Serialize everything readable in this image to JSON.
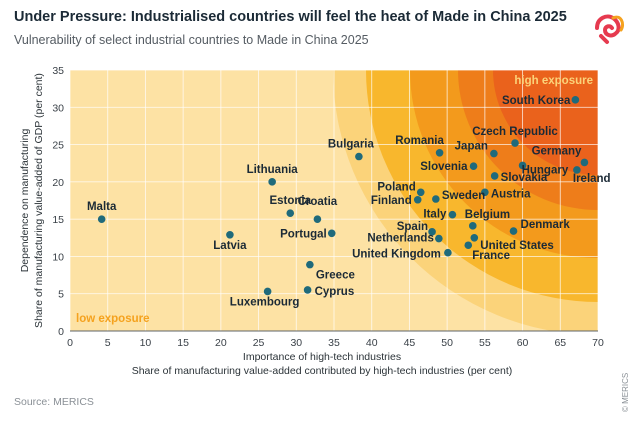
{
  "title": "Under Pressure: Industrialised countries will feel the heat of Made in China 2025",
  "subtitle": "Vulnerability of select industrial countries to Made in China 2025",
  "source": "Source: MERICS",
  "copyright": "© MERICS",
  "chart_data": {
    "type": "scatter",
    "xlabel": "Importance of high-tech industries",
    "xlabel_sub": "Share of manufacturing value-added contributed by high-tech industries (per cent)",
    "ylabel": "Dependence on manufacturing",
    "ylabel_sub": "Share of manufacturing value-added of GDP (per cent)",
    "xlim": [
      0,
      70
    ],
    "ylim": [
      0,
      35
    ],
    "xticks": [
      0,
      5,
      10,
      15,
      20,
      25,
      30,
      35,
      40,
      45,
      50,
      55,
      60,
      65,
      70
    ],
    "yticks": [
      0,
      5,
      10,
      15,
      20,
      25,
      30,
      35
    ],
    "grid": true,
    "annotations": {
      "low": "low exposure",
      "high": "high exposure"
    },
    "colors": {
      "background": "#fde2a4",
      "zone1": "#fbd37a",
      "zone2": "#f8b72d",
      "zone3": "#f39a1c",
      "zone4": "#ee7d1a",
      "zone5": "#ea621c",
      "point": "#1f6a7b",
      "label": "#1b2a36",
      "annotation": "#f5a21e",
      "annotation_high": "#fbd37a"
    },
    "points": [
      {
        "label": "Malta",
        "x": 4.2,
        "y": 15.0
      },
      {
        "label": "Latvia",
        "x": 21.2,
        "y": 12.9
      },
      {
        "label": "Lithuania",
        "x": 26.8,
        "y": 20.0
      },
      {
        "label": "Estonia",
        "x": 29.2,
        "y": 15.8
      },
      {
        "label": "Portugal",
        "x": 34.7,
        "y": 13.1
      },
      {
        "label": "Croatia",
        "x": 32.8,
        "y": 15.0
      },
      {
        "label": "Greece",
        "x": 31.8,
        "y": 8.9
      },
      {
        "label": "Luxembourg",
        "x": 26.2,
        "y": 5.3
      },
      {
        "label": "Cyprus",
        "x": 31.5,
        "y": 5.5
      },
      {
        "label": "Bulgaria",
        "x": 38.3,
        "y": 23.4
      },
      {
        "label": "Romania",
        "x": 49.0,
        "y": 23.9
      },
      {
        "label": "Poland",
        "x": 46.5,
        "y": 18.6
      },
      {
        "label": "Finland",
        "x": 46.1,
        "y": 17.6
      },
      {
        "label": "Sweden",
        "x": 48.5,
        "y": 17.7
      },
      {
        "label": "Slovenia",
        "x": 53.5,
        "y": 22.1
      },
      {
        "label": "Czech Republic",
        "x": 59.0,
        "y": 25.2
      },
      {
        "label": "Japan",
        "x": 56.2,
        "y": 23.8
      },
      {
        "label": "Hungary",
        "x": 60.0,
        "y": 22.2
      },
      {
        "label": "Slovakia",
        "x": 56.3,
        "y": 20.8
      },
      {
        "label": "Austria",
        "x": 55.0,
        "y": 18.6
      },
      {
        "label": "South Korea",
        "x": 67.0,
        "y": 31.0
      },
      {
        "label": "Germany",
        "x": 68.2,
        "y": 22.6
      },
      {
        "label": "Ireland",
        "x": 67.2,
        "y": 21.6
      },
      {
        "label": "Italy",
        "x": 50.7,
        "y": 15.6
      },
      {
        "label": "Belgium",
        "x": 53.4,
        "y": 14.1
      },
      {
        "label": "Spain",
        "x": 48.0,
        "y": 13.3
      },
      {
        "label": "Netherlands",
        "x": 48.9,
        "y": 12.4
      },
      {
        "label": "Denmark",
        "x": 58.8,
        "y": 13.4
      },
      {
        "label": "United States",
        "x": 53.6,
        "y": 12.5
      },
      {
        "label": "France",
        "x": 52.8,
        "y": 11.5
      },
      {
        "label": "United Kingdom",
        "x": 50.1,
        "y": 10.5
      }
    ]
  }
}
